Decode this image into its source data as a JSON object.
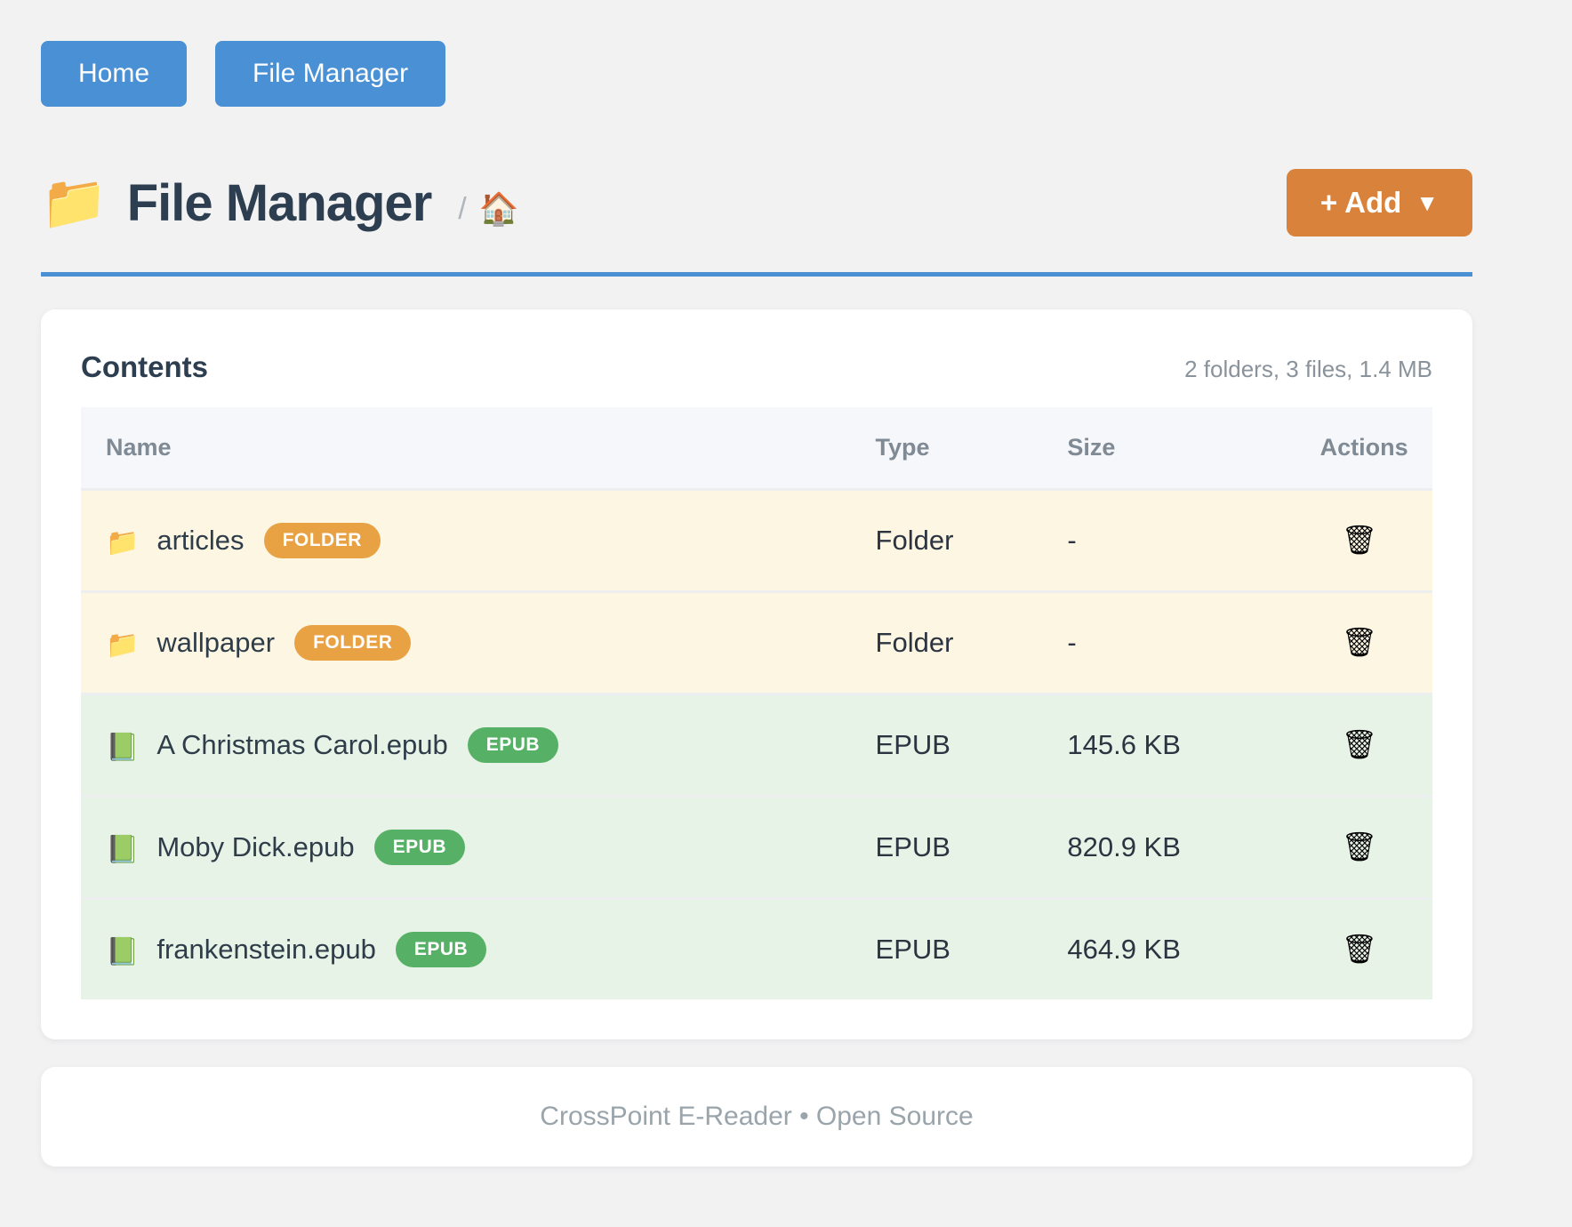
{
  "nav": {
    "buttons": [
      {
        "label": "Home"
      },
      {
        "label": "File Manager"
      }
    ]
  },
  "header": {
    "folder_icon": "📁",
    "title": "File Manager",
    "breadcrumb_separator": "/",
    "breadcrumb_home_icon": "🏠",
    "add_button": {
      "label": "+ Add",
      "caret": "▼"
    }
  },
  "contents": {
    "title": "Contents",
    "summary": "2 folders, 3 files, 1.4 MB",
    "table": {
      "columns": [
        "Name",
        "Type",
        "Size",
        "Actions"
      ],
      "rows": [
        {
          "kind": "folder",
          "icon": "📁",
          "name": "articles",
          "badge": "FOLDER",
          "type": "Folder",
          "size": "-",
          "action_icon": "🗑"
        },
        {
          "kind": "folder",
          "icon": "📁",
          "name": "wallpaper",
          "badge": "FOLDER",
          "type": "Folder",
          "size": "-",
          "action_icon": "🗑"
        },
        {
          "kind": "epub",
          "icon": "📗",
          "name": "A Christmas Carol.epub",
          "badge": "EPUB",
          "type": "EPUB",
          "size": "145.6 KB",
          "action_icon": "🗑"
        },
        {
          "kind": "epub",
          "icon": "📗",
          "name": "Moby Dick.epub",
          "badge": "EPUB",
          "type": "EPUB",
          "size": "820.9 KB",
          "action_icon": "🗑"
        },
        {
          "kind": "epub",
          "icon": "📗",
          "name": "frankenstein.epub",
          "badge": "EPUB",
          "type": "EPUB",
          "size": "464.9 KB",
          "action_icon": "🗑"
        }
      ]
    }
  },
  "footer": {
    "text": "CrossPoint E-Reader • Open Source"
  },
  "colors": {
    "nav_button": "#4a90d4",
    "add_button": "#d9823c",
    "divider": "#4a90d4",
    "folder_badge": "#e9a243",
    "epub_badge": "#56b166",
    "folder_row_bg": "#fdf6e3",
    "epub_row_bg": "#e8f3e7"
  }
}
